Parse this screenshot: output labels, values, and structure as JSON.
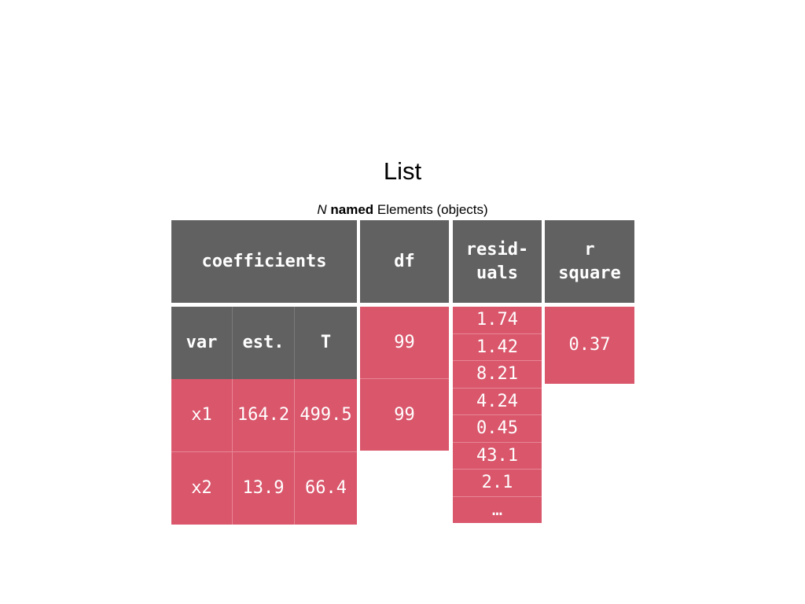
{
  "title": "List",
  "subtitle": {
    "n": "N",
    "named": "named",
    "rest": " Elements (objects)"
  },
  "headers": {
    "coefficients": "coefficients",
    "df": "df",
    "residuals_line1": "resid-",
    "residuals_line2": "uals",
    "rsquare_line1": "r",
    "rsquare_line2": "square"
  },
  "coefficients": {
    "columns": [
      "var",
      "est.",
      "T"
    ],
    "rows": [
      [
        "x1",
        "164.2",
        "499.5"
      ],
      [
        "x2",
        "13.9",
        "66.4"
      ]
    ]
  },
  "df": [
    "99",
    "99"
  ],
  "residuals": [
    "1.74",
    "1.42",
    "8.21",
    "4.24",
    "0.45",
    "43.1",
    "2.1",
    "…"
  ],
  "r_square": "0.37",
  "colors": {
    "header": "#616161",
    "value": "#d9566b"
  }
}
